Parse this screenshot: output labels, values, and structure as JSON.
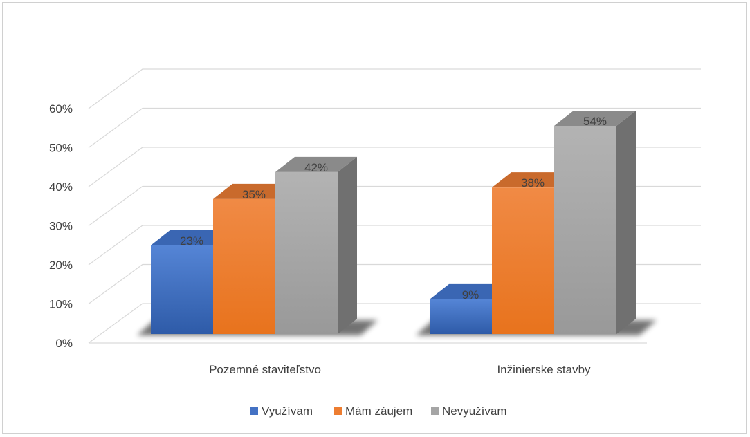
{
  "chart_data": {
    "type": "bar",
    "title": "",
    "xlabel": "",
    "ylabel": "",
    "categories": [
      "Pozemné staviteľstvo",
      "Inžinierske stavby"
    ],
    "series": [
      {
        "name": "Využívam",
        "values": [
          23,
          9
        ],
        "labels": [
          "23%",
          "9%"
        ],
        "color": "#4472c4"
      },
      {
        "name": "Mám záujem",
        "values": [
          35,
          38
        ],
        "labels": [
          "35%",
          "38%"
        ],
        "color": "#ed7d31"
      },
      {
        "name": "Nevyužívam",
        "values": [
          42,
          54
        ],
        "labels": [
          "42%",
          "54%"
        ],
        "color": "#a5a5a5"
      }
    ],
    "ylim": [
      0,
      60
    ],
    "yticks": [
      "0%",
      "10%",
      "20%",
      "30%",
      "40%",
      "50%",
      "60%"
    ],
    "grid": true,
    "legend": "bottom",
    "style": "3d-clustered-column"
  }
}
